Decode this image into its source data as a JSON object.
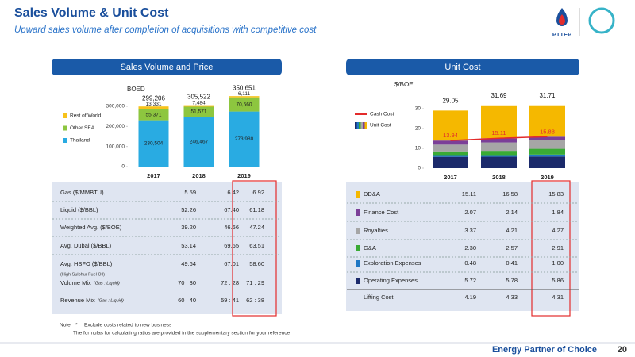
{
  "header": {
    "title": "Sales Volume & Unit Cost",
    "subtitle": "Upward sales volume after completion of acquisitions with competitive cost",
    "logo": "PTTEP"
  },
  "panels": {
    "left": "Sales Volume and Price",
    "right": "Unit Cost"
  },
  "chart_data": [
    {
      "type": "stacked_bar",
      "y_label": "BOED",
      "categories": [
        "2017",
        "2018",
        "2019"
      ],
      "series": [
        {
          "name": "Thailand",
          "color": "#29abe2",
          "values": [
            230504,
            246467,
            273980
          ],
          "value_labels": [
            "230,504",
            "246,467",
            "273,980"
          ]
        },
        {
          "name": "Other SEA",
          "color": "#8dc63f",
          "values": [
            55371,
            51571,
            70560
          ],
          "value_labels": [
            "55,371",
            "51,571",
            "70,560"
          ]
        },
        {
          "name": "Rest of World",
          "color": "#f7c21b",
          "values": [
            13331,
            7484,
            6111
          ],
          "value_labels": [
            "13,331",
            "7,484",
            "6,111"
          ]
        }
      ],
      "totals": {
        "values": [
          299206,
          305522,
          350651
        ],
        "value_labels": [
          "299,206",
          "305,522",
          "350,651"
        ]
      },
      "ylim": [
        0,
        360000
      ],
      "yticks": [
        0,
        {
          "value": 100000,
          "label": "100,000"
        },
        {
          "value": 200000,
          "label": "200,000"
        },
        {
          "value": 300000,
          "label": "300,000"
        }
      ]
    },
    {
      "type": "stacked_bar_line",
      "y_label": "$/BOE",
      "categories": [
        "2017",
        "2018",
        "2019"
      ],
      "series": [
        {
          "color": "#1b2a6b",
          "values": [
            5.72,
            5.78,
            5.86
          ]
        },
        {
          "color": "#1f77c4",
          "values": [
            0.48,
            0.41,
            1.0
          ]
        },
        {
          "color": "#3aaa35",
          "values": [
            2.3,
            2.57,
            2.91
          ]
        },
        {
          "color": "#a6a6a6",
          "values": [
            3.37,
            4.21,
            4.27
          ]
        },
        {
          "color": "#7b3f98",
          "values": [
            2.07,
            2.14,
            1.84
          ]
        },
        {
          "color": "#f5b800",
          "values": [
            15.11,
            16.58,
            15.83
          ]
        }
      ],
      "stack_legend": "Unit Cost",
      "totals": [
        29.05,
        31.69,
        31.71
      ],
      "line": {
        "name": "Cash Cost",
        "color": "#e32b2b",
        "values": [
          13.94,
          15.11,
          15.88
        ]
      },
      "ylim": [
        0,
        36
      ],
      "yticks": [
        0,
        10,
        20,
        30
      ]
    }
  ],
  "price_table": {
    "rows": [
      {
        "label": "Gas ($/MMBTU)",
        "values": [
          "5.59",
          "6.42",
          "6.92"
        ]
      },
      {
        "label": "Liquid ($/BBL)",
        "values": [
          "52.26",
          "67.40",
          "61.18"
        ]
      },
      {
        "label": "Weighted Avg. ($/BOE)",
        "values": [
          "39.20",
          "46.66",
          "47.24"
        ]
      },
      {
        "label": "Avg. Dubai ($/BBL)",
        "values": [
          "53.14",
          "69.65",
          "63.51"
        ]
      },
      {
        "label": "Avg. HSFO ($/BBL)",
        "note": "(High Sulphur Fuel Oil)",
        "values": [
          "49.64",
          "67.01",
          "58.60"
        ]
      },
      {
        "label": "Volume Mix",
        "qualifier": "(Gas : Liquid)",
        "values": [
          "70 : 30",
          "72 : 28",
          "71 : 29"
        ]
      },
      {
        "label": "Revenue Mix",
        "qualifier": "(Gas : Liquid)",
        "values": [
          "60 : 40",
          "59 : 41",
          "62 : 38"
        ]
      }
    ]
  },
  "cost_table": {
    "rows": [
      {
        "label": "DD&A",
        "color": "#f5b800",
        "values": [
          "15.11",
          "16.58",
          "15.83"
        ]
      },
      {
        "label": "Finance Cost",
        "color": "#7b3f98",
        "values": [
          "2.07",
          "2.14",
          "1.84"
        ]
      },
      {
        "label": "Royalties",
        "color": "#a6a6a6",
        "values": [
          "3.37",
          "4.21",
          "4.27"
        ]
      },
      {
        "label": "G&A",
        "color": "#3aaa35",
        "values": [
          "2.30",
          "2.57",
          "2.91"
        ]
      },
      {
        "label": "Exploration Expenses",
        "color": "#1f77c4",
        "values": [
          "0.48",
          "0.41",
          "1.00"
        ]
      },
      {
        "label": "Operating Expenses",
        "color": "#1b2a6b",
        "values": [
          "5.72",
          "5.78",
          "5.86"
        ]
      },
      {
        "label": "Lifting Cost",
        "values": [
          "4.19",
          "4.33",
          "4.31"
        ]
      }
    ]
  },
  "note": {
    "label": "Note:",
    "marker": "*",
    "lines": [
      "Exclude costs related to new business",
      "The formulas for calculating ratios are provided in the supplementary section for your reference"
    ]
  },
  "footer": {
    "tagline": "Energy Partner of Choice",
    "page": "20"
  }
}
